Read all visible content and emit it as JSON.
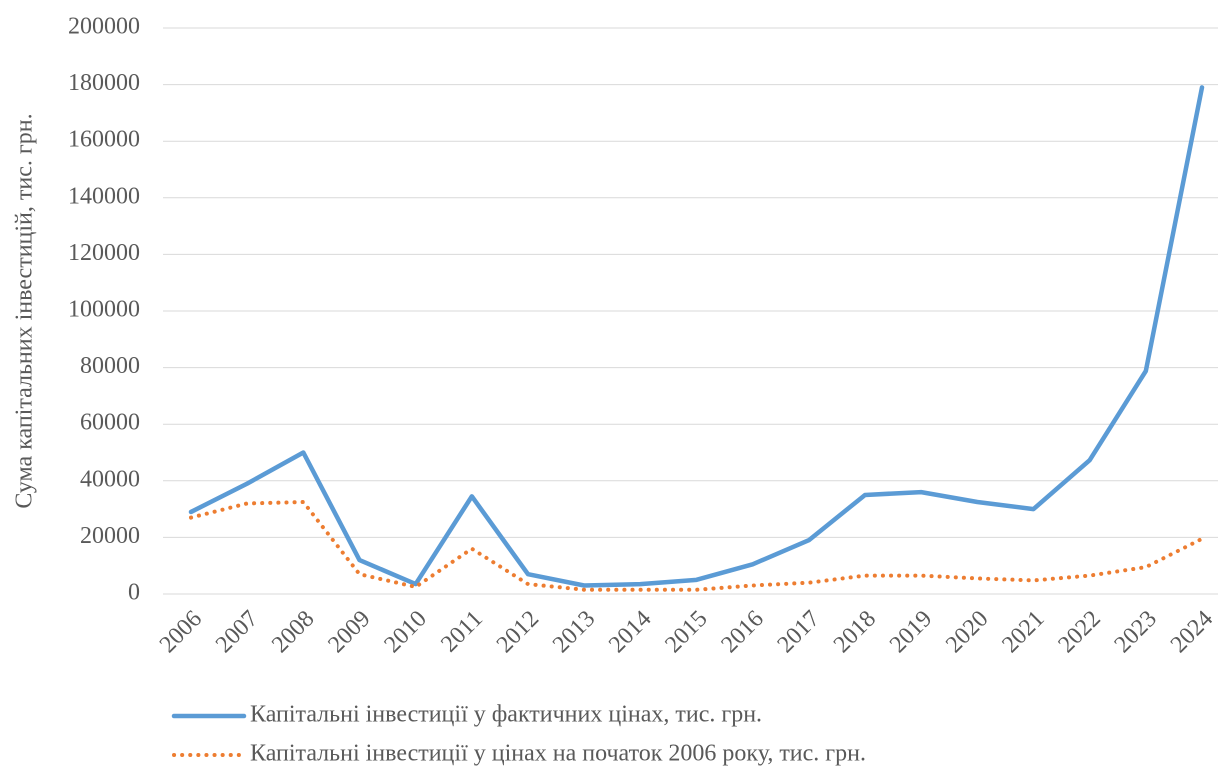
{
  "chart_data": {
    "type": "line",
    "y_label": "Сума капітальних інвестицій, тис. грн.",
    "categories": [
      "2006",
      "2007",
      "2008",
      "2009",
      "2010",
      "2011",
      "2012",
      "2013",
      "2014",
      "2015",
      "2016",
      "2017",
      "2018",
      "2019",
      "2020",
      "2021",
      "2022",
      "2023",
      "2024"
    ],
    "series": [
      {
        "name": "Капітальні інвестиції у фактичних цінах, тис. грн.",
        "color": "#5b9bd5",
        "style": "solid",
        "values": [
          29000,
          39000,
          50000,
          12000,
          3500,
          34500,
          7000,
          3000,
          3500,
          5000,
          10500,
          19000,
          35000,
          36000,
          32500,
          30000,
          47300,
          78800,
          179000
        ]
      },
      {
        "name": "Капітальні інвестиції у цінах на початок 2006 року, тис. грн.",
        "color": "#ed7d31",
        "style": "dotted",
        "values": [
          27000,
          32000,
          32500,
          7000,
          2500,
          16000,
          3500,
          1500,
          1500,
          1500,
          3000,
          4000,
          6500,
          6500,
          5500,
          4800,
          6500,
          9500,
          19500
        ]
      }
    ],
    "ylim": [
      0,
      200000
    ],
    "yticks": [
      0,
      20000,
      40000,
      60000,
      80000,
      100000,
      120000,
      140000,
      160000,
      180000,
      200000
    ],
    "grid": true,
    "legend": "bottom"
  }
}
